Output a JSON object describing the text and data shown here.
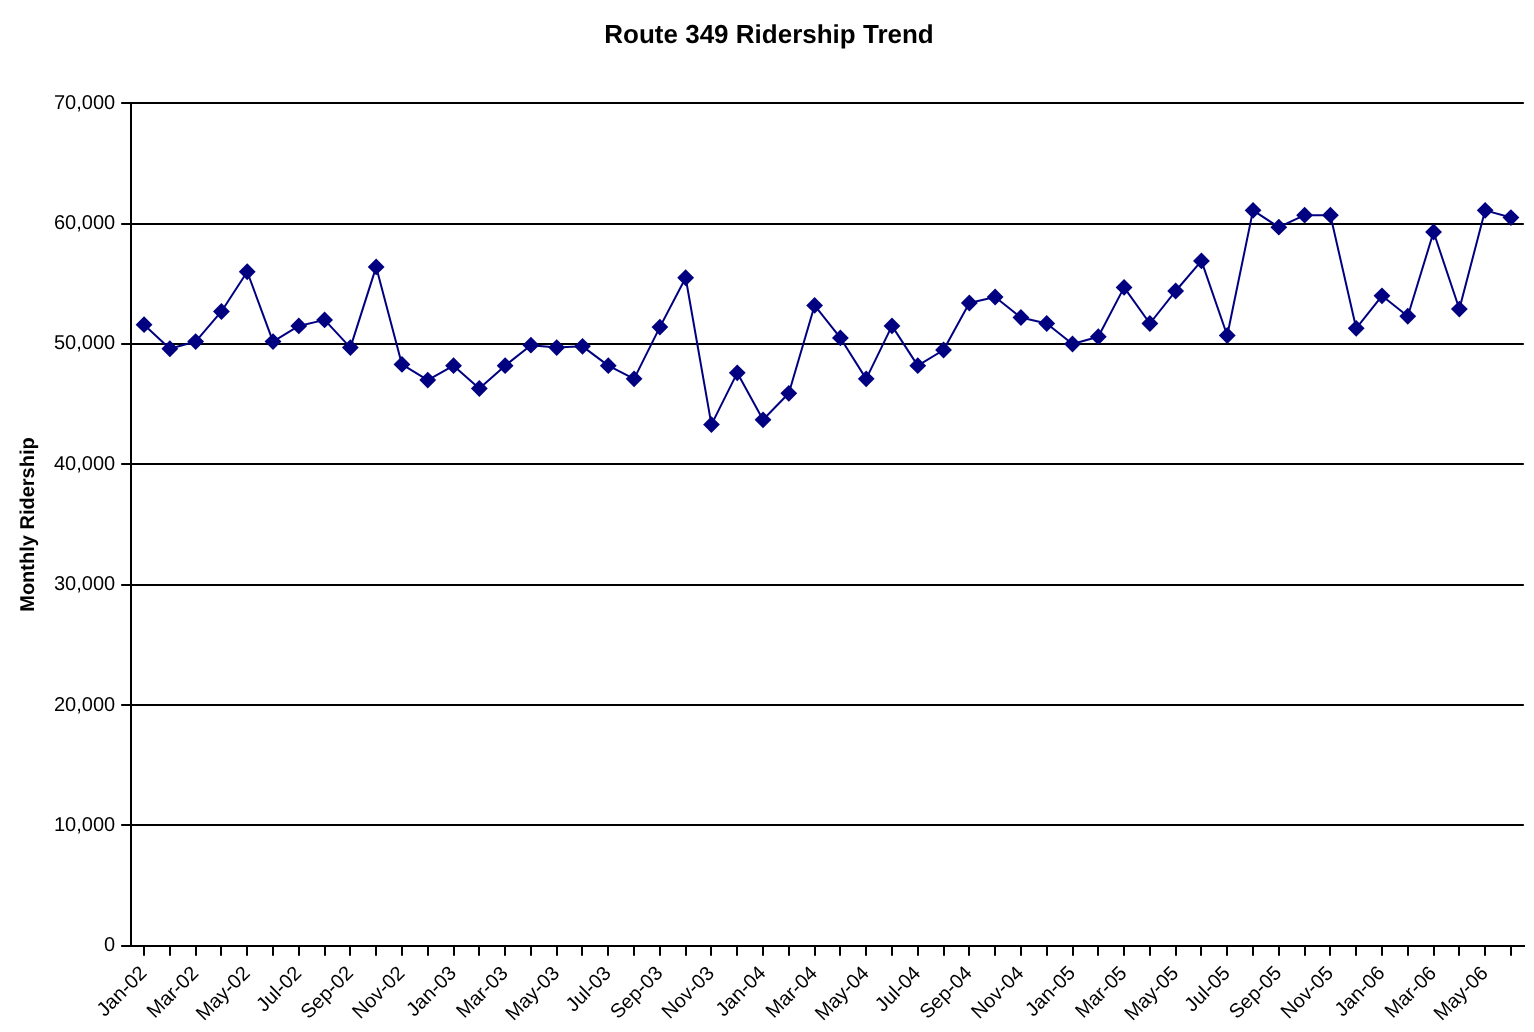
{
  "chart_data": {
    "type": "line",
    "title": "Route 349 Ridership Trend",
    "ylabel": "Monthly Ridership",
    "categories": [
      "Jan-02",
      null,
      "Mar-02",
      null,
      "May-02",
      null,
      "Jul-02",
      null,
      "Sep-02",
      null,
      "Nov-02",
      null,
      "Jan-03",
      null,
      "Mar-03",
      null,
      "May-03",
      null,
      "Jul-03",
      null,
      "Sep-03",
      null,
      "Nov-03",
      null,
      "Jan-04",
      null,
      "Mar-04",
      null,
      "May-04",
      null,
      "Jul-04",
      null,
      "Sep-04",
      null,
      "Nov-04",
      null,
      "Jan-05",
      null,
      "Mar-05",
      null,
      "May-05",
      null,
      "Jul-05",
      null,
      "Sep-05",
      null,
      "Nov-05",
      null,
      "Jan-06",
      null,
      "Mar-06",
      null,
      "May-06",
      null
    ],
    "series": [
      {
        "color": "#000080",
        "values": [
          51600,
          49600,
          50200,
          52700,
          56000,
          50200,
          51500,
          52000,
          49700,
          56400,
          48300,
          47000,
          48200,
          46300,
          48200,
          49900,
          49700,
          49800,
          48200,
          47100,
          51400,
          55500,
          43300,
          47600,
          43700,
          45900,
          53200,
          50500,
          47100,
          51500,
          48200,
          49500,
          53400,
          53900,
          52200,
          51700,
          50000,
          50600,
          54700,
          51700,
          54400,
          56900,
          50700,
          61100,
          59700,
          60700,
          60700,
          51300,
          54000,
          52300,
          59300,
          52900,
          61100,
          60500
        ]
      }
    ],
    "ylim": [
      0,
      70000
    ],
    "yticks": [
      0,
      {
        "value": 10000,
        "label": "10,000"
      },
      {
        "value": 20000,
        "label": "20,000"
      },
      {
        "value": 30000,
        "label": "30,000"
      },
      {
        "value": 40000,
        "label": "40,000"
      },
      {
        "value": 50000,
        "label": "50,000"
      },
      {
        "value": 60000,
        "label": "60,000"
      },
      {
        "value": 70000,
        "label": "70,000"
      }
    ],
    "grid": "y",
    "legend": false,
    "marker": "diamond",
    "line_style": "solid"
  }
}
